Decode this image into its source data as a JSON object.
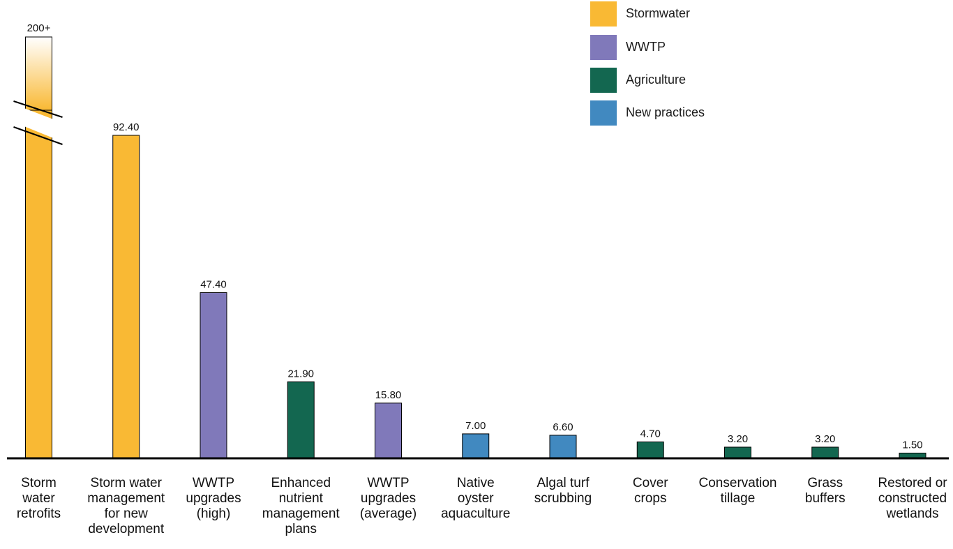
{
  "colors": {
    "stormwater": "#F9B934",
    "wwtp": "#8079BA",
    "agriculture": "#136750",
    "new_practices": "#4189C0",
    "axis": "#000000"
  },
  "legend": [
    {
      "label": "Stormwater",
      "key": "stormwater"
    },
    {
      "label": "WWTP",
      "key": "wwtp"
    },
    {
      "label": "Agriculture",
      "key": "agriculture"
    },
    {
      "label": "New practices",
      "key": "new_practices"
    }
  ],
  "chart_data": {
    "type": "bar",
    "categories": [
      [
        "Storm",
        "water",
        "retrofits"
      ],
      [
        "Storm water",
        "management",
        "for new",
        "development"
      ],
      [
        "WWTP",
        "upgrades",
        "(high)"
      ],
      [
        "Enhanced",
        "nutrient",
        "management",
        "plans"
      ],
      [
        "WWTP",
        "upgrades",
        "(average)"
      ],
      [
        "Native",
        "oyster",
        "aquaculture"
      ],
      [
        "Algal turf",
        "scrubbing"
      ],
      [
        "Cover",
        "crops"
      ],
      [
        "Conservation",
        "tillage"
      ],
      [
        "Grass",
        "buffers"
      ],
      [
        "Restored or",
        "constructed",
        "wetlands"
      ]
    ],
    "values": [
      200,
      92.4,
      47.4,
      21.9,
      15.8,
      7.0,
      6.6,
      4.7,
      3.2,
      3.2,
      1.5
    ],
    "value_labels": [
      "200+",
      "92.40",
      "47.40",
      "21.90",
      "15.80",
      "7.00",
      "6.60",
      "4.70",
      "3.20",
      "3.20",
      "1.50"
    ],
    "groups": [
      "stormwater",
      "stormwater",
      "wwtp",
      "agriculture",
      "wwtp",
      "new_practices",
      "new_practices",
      "agriculture",
      "agriculture",
      "agriculture",
      "agriculture"
    ],
    "broken_axis_bars": [
      0
    ],
    "ylim": [
      0,
      100
    ],
    "grid": false,
    "legend_position": "top-right",
    "title": "",
    "xlabel": "",
    "ylabel": ""
  }
}
